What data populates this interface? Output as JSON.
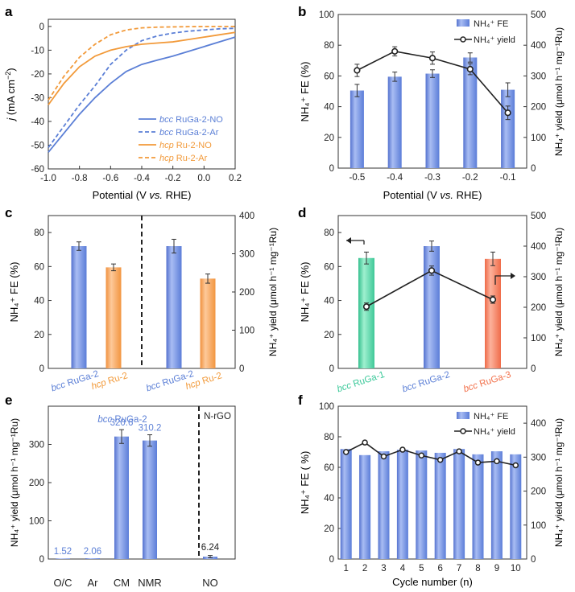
{
  "chart_data": [
    {
      "id": "a",
      "panel_label": "a",
      "type": "line",
      "xlabel_parts": [
        "Potential (V ",
        "vs.",
        " RHE)"
      ],
      "ylabel_parts": [
        "j",
        " (mA cm",
        "−2",
        ")"
      ],
      "xlim": [
        -1.0,
        0.2
      ],
      "ylim": [
        -60,
        3
      ],
      "xticks": [
        -1.0,
        -0.8,
        -0.6,
        -0.4,
        -0.2,
        0.0,
        0.2
      ],
      "xtick_labels": [
        "-1.0",
        "-0.8",
        "-0.6",
        "-0.4",
        "-0.2",
        "0.0",
        "0.2"
      ],
      "yticks": [
        0,
        -10,
        -20,
        -30,
        -40,
        -50,
        -60
      ],
      "ytick_labels": [
        "0",
        "-10",
        "-20",
        "-30",
        "-40",
        "-50",
        "-60"
      ],
      "legend_position": "bottom-right",
      "series": [
        {
          "name": "bcc RuGa-2-NO",
          "legend_italic": "bcc",
          "legend_rest": " RuGa-2-NO",
          "color": "#5b7fd6",
          "style": "solid",
          "x": [
            -1.0,
            -0.9,
            -0.8,
            -0.7,
            -0.6,
            -0.5,
            -0.4,
            -0.3,
            -0.2,
            -0.1,
            0.0,
            0.1,
            0.2
          ],
          "y": [
            -53,
            -45,
            -37,
            -30,
            -24,
            -19,
            -16,
            -14.2,
            -12.5,
            -10.5,
            -8.5,
            -6.5,
            -4.5
          ]
        },
        {
          "name": "bcc RuGa-2-Ar",
          "legend_italic": "bcc",
          "legend_rest": " RuGa-2-Ar",
          "color": "#5b7fd6",
          "style": "dashed",
          "x": [
            -1.0,
            -0.9,
            -0.8,
            -0.7,
            -0.6,
            -0.5,
            -0.4,
            -0.3,
            -0.2,
            -0.1,
            0.0,
            0.1,
            0.2
          ],
          "y": [
            -51,
            -42,
            -33,
            -25,
            -16,
            -10,
            -6,
            -4,
            -2.8,
            -2,
            -1.5,
            -1,
            -0.8
          ]
        },
        {
          "name": "hcp Ru-2-NO",
          "legend_italic": "hcp",
          "legend_rest": " Ru-2-NO",
          "color": "#f29a3a",
          "style": "solid",
          "x": [
            -1.0,
            -0.9,
            -0.8,
            -0.7,
            -0.6,
            -0.5,
            -0.4,
            -0.3,
            -0.2,
            -0.1,
            0.0,
            0.1,
            0.2
          ],
          "y": [
            -33,
            -24,
            -17,
            -12.5,
            -10,
            -8.5,
            -7.5,
            -7,
            -6.5,
            -5.5,
            -4.5,
            -3.5,
            -2.5
          ]
        },
        {
          "name": "hcp Ru-2-Ar",
          "legend_italic": "hcp",
          "legend_rest": " Ru-2-Ar",
          "color": "#f29a3a",
          "style": "dashed",
          "x": [
            -1.0,
            -0.9,
            -0.8,
            -0.7,
            -0.6,
            -0.5,
            -0.4,
            -0.3,
            -0.2,
            -0.1,
            0.0,
            0.1,
            0.2
          ],
          "y": [
            -31,
            -21,
            -13,
            -7.5,
            -3.5,
            -1.5,
            -0.6,
            -0.3,
            -0.2,
            -0.1,
            -0.05,
            0,
            0
          ]
        }
      ]
    },
    {
      "id": "b",
      "panel_label": "b",
      "type": "bar",
      "xlabel_parts": [
        "Potential (V ",
        "vs.",
        " RHE)"
      ],
      "categories": [
        "-0.5",
        "-0.4",
        "-0.3",
        "-0.2",
        "-0.1"
      ],
      "fe_values": [
        50.5,
        59.5,
        61.5,
        72,
        51
      ],
      "fe_errors": [
        4,
        3,
        2.5,
        3,
        4.5
      ],
      "yield_values": [
        318,
        380,
        358,
        322,
        180
      ],
      "yield_errors": [
        20,
        15,
        20,
        18,
        22
      ],
      "ylim": [
        0,
        100
      ],
      "ylim_right": [
        0,
        500
      ],
      "yticks": [
        0,
        20,
        40,
        60,
        80,
        100
      ],
      "yticks_right": [
        0,
        100,
        200,
        300,
        400,
        500
      ],
      "ylabel_left": "NH₄⁺ FE (%)",
      "ylabel_right": "NH₄⁺ yield (μmol h⁻¹ mg⁻¹Ru)",
      "legend": [
        "NH₄⁺ FE",
        "NH₄⁺ yield"
      ],
      "bar_color": "#6f8fe0",
      "line_color": "#222222"
    },
    {
      "id": "c",
      "panel_label": "c",
      "type": "bar",
      "categories": [
        "bcc RuGa-2",
        "hcp Ru-2",
        "bcc RuGa-2",
        "hcp Ru-2"
      ],
      "cat_italic": [
        "bcc",
        "hcp",
        "bcc",
        "hcp"
      ],
      "cat_rest": [
        " RuGa-2",
        " Ru-2",
        " RuGa-2",
        " Ru-2"
      ],
      "cat_colors": [
        "#5b7fd6",
        "#f29a3a",
        "#5b7fd6",
        "#f29a3a"
      ],
      "values_fe": [
        72,
        59.5,
        null,
        null
      ],
      "fe_errors": [
        2.5,
        2,
        null,
        null
      ],
      "values_yield": [
        null,
        null,
        320,
        235
      ],
      "yield_errors": [
        null,
        null,
        18,
        12
      ],
      "bar_colors": [
        "#6f8fe0",
        "#f7a661",
        "#6f8fe0",
        "#f7a661"
      ],
      "ylim": [
        0,
        90
      ],
      "ylim_right": [
        0,
        400
      ],
      "yticks": [
        0,
        20,
        40,
        60,
        80
      ],
      "yticks_right": [
        0,
        100,
        200,
        300,
        400
      ],
      "ylabel_left": "NH₄⁺ FE (%)",
      "ylabel_right": "NH₄⁺ yield (μmol h⁻¹ mg⁻¹Ru)",
      "divider": "dashed"
    },
    {
      "id": "d",
      "panel_label": "d",
      "type": "bar",
      "categories": [
        "bcc RuGa-1",
        "bcc RuGa-2",
        "bcc RuGa-3"
      ],
      "cat_italic": [
        "bcc",
        "bcc",
        "bcc"
      ],
      "cat_rest": [
        " RuGa-1",
        " RuGa-2",
        " RuGa-3"
      ],
      "cat_colors": [
        "#3cc99a",
        "#5b7fd6",
        "#f2704a"
      ],
      "bar_colors": [
        "#52d4a4",
        "#6f8fe0",
        "#f7795a"
      ],
      "fe_values": [
        65,
        72,
        64.5
      ],
      "fe_errors": [
        3.5,
        3,
        4
      ],
      "yield_values": [
        202,
        320,
        225
      ],
      "yield_errors": [
        12,
        15,
        12
      ],
      "ylim": [
        0,
        90
      ],
      "ylim_right": [
        0,
        500
      ],
      "yticks": [
        0,
        20,
        40,
        60,
        80
      ],
      "yticks_right": [
        0,
        100,
        200,
        300,
        400,
        500
      ],
      "ylabel_left": "NH₄⁺ FE (%)",
      "ylabel_right": "NH₄⁺ yield (μmol h⁻¹ mg⁻¹Ru)",
      "line_color": "#222222"
    },
    {
      "id": "e",
      "panel_label": "e",
      "type": "bar",
      "categories": [
        "O/C",
        "Ar",
        "CM",
        "NMR",
        "NO"
      ],
      "values": [
        1.52,
        2.06,
        320.6,
        310.2,
        6.24
      ],
      "errors": [
        0,
        0,
        18,
        15,
        3
      ],
      "value_labels": [
        "1.52",
        "2.06",
        "320.6",
        "310.2",
        "6.24"
      ],
      "value_label_colors": [
        "#5b7fd6",
        "#5b7fd6",
        "#5b7fd6",
        "#5b7fd6",
        "#222222"
      ],
      "bar_color": "#6f8fe0",
      "ylim": [
        0,
        400
      ],
      "yticks": [
        0,
        100,
        200,
        300
      ],
      "ylabel": "NH₄⁺ yield (μmol h⁻¹ mg⁻¹Ru)",
      "group_labels": [
        "bcc RuGa-2",
        "N-rGO"
      ],
      "group_italic": "bcc",
      "group_rest": " RuGa-2",
      "divider": "dashed"
    },
    {
      "id": "f",
      "panel_label": "f",
      "type": "bar",
      "xlabel": "Cycle number (n)",
      "categories": [
        "1",
        "2",
        "3",
        "4",
        "5",
        "6",
        "7",
        "8",
        "9",
        "10"
      ],
      "fe_values": [
        72,
        68,
        70.5,
        71.5,
        71,
        69.5,
        72,
        68.5,
        70.5,
        68.5
      ],
      "yield_values": [
        315,
        343,
        302,
        322,
        305,
        292,
        317,
        284,
        288,
        276
      ],
      "ylim": [
        0,
        100
      ],
      "ylim_right": [
        0,
        450
      ],
      "yticks": [
        0,
        20,
        40,
        60,
        80,
        100
      ],
      "yticks_right": [
        0,
        100,
        200,
        300,
        400
      ],
      "ylabel_left": "NH₄⁺ FE ( %)",
      "ylabel_right": "NH₄⁺ yield (μmol h⁻¹ mg⁻¹Ru)",
      "legend": [
        "NH₄⁺ FE",
        "NH₄⁺ yield"
      ],
      "bar_color": "#6f8fe0",
      "line_color": "#222222"
    }
  ]
}
